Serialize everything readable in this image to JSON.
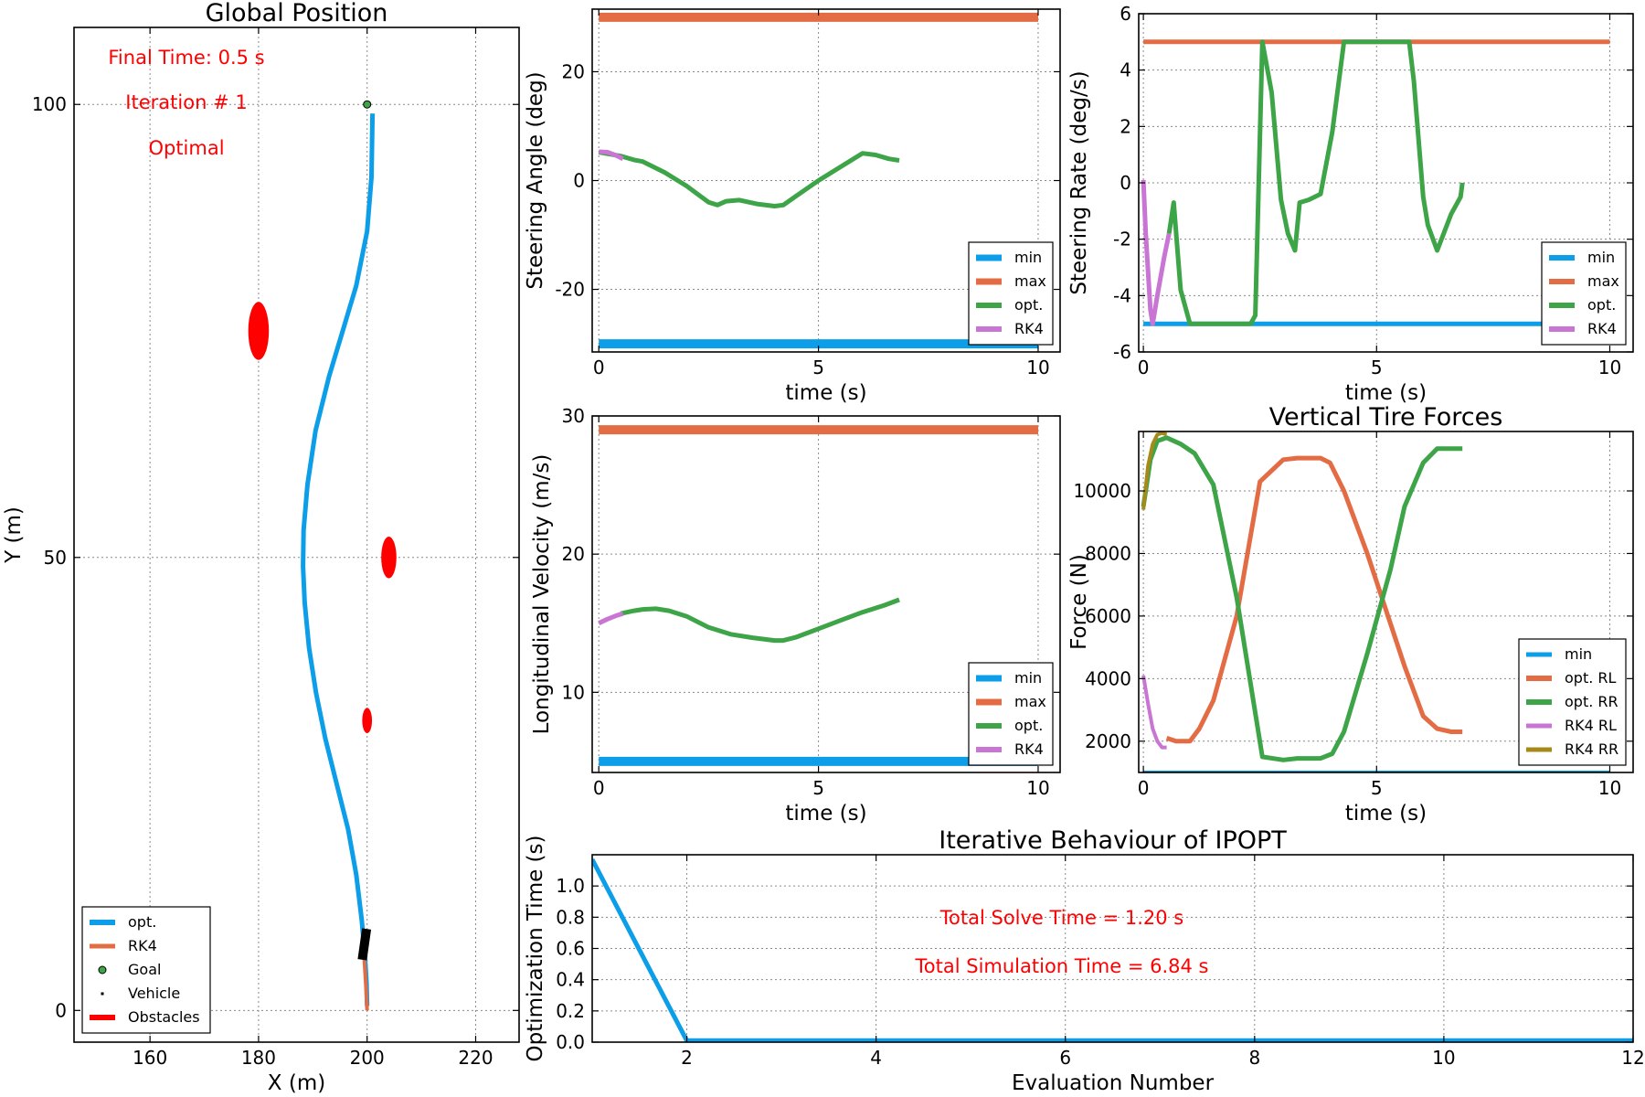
{
  "colors": {
    "min": "#0c9ee8",
    "max": "#e36c45",
    "opt": "#3da447",
    "rk4": "#c875d4",
    "rk4_rr": "#a58a1b",
    "obstacle": "#ff0000",
    "annotation": "#ff0000",
    "goal": "#3da447"
  },
  "annotations": {
    "final_time": "Final Time: 0.5 s",
    "iteration": "Iteration # 1",
    "status": "Optimal",
    "total_solve": "Total Solve Time  = 1.20 s",
    "total_sim": "Total Simulation Time = 6.84 s"
  },
  "chart_data": [
    {
      "id": "global",
      "type": "line",
      "title": "Global Position",
      "xlabel": "X (m)",
      "ylabel": "Y (m)",
      "xlim": [
        146,
        228
      ],
      "ylim": [
        -3.5,
        108.5
      ],
      "xticks": [
        160,
        180,
        200,
        220
      ],
      "yticks": [
        0,
        50,
        100
      ],
      "grid": true,
      "legend_placement": "lower-left",
      "legend": [
        "opt.",
        "RK4",
        "Goal",
        "Vehicle",
        "Obstacles"
      ],
      "series": [
        {
          "name": "opt.",
          "color_key": "min",
          "width": 5,
          "x": [
            201.0,
            200.8,
            200.0,
            198.0,
            195.5,
            193.0,
            190.5,
            189.0,
            188.3,
            188.2,
            188.5,
            189.3,
            190.6,
            192.3,
            194.4,
            196.5,
            198.0,
            199.0,
            199.6,
            199.9,
            200.0
          ],
          "y": [
            99,
            92,
            86,
            80,
            75,
            70,
            64,
            58,
            53,
            49,
            45,
            40,
            35,
            30,
            25,
            20,
            15,
            10,
            6,
            3,
            0.5
          ]
        },
        {
          "name": "RK4",
          "color_key": "max",
          "width": 4,
          "x": [
            199.3,
            199.5,
            199.8,
            200.0
          ],
          "y": [
            8.5,
            5.5,
            2.5,
            0.0
          ]
        }
      ],
      "goal": {
        "x": 200,
        "y": 100
      },
      "vehicle": {
        "x": 199.5,
        "y": 7.3
      },
      "obstacles": [
        {
          "x": 180,
          "y": 75,
          "rx": 1.9,
          "ry": 3.2
        },
        {
          "x": 204,
          "y": 50,
          "rx": 1.4,
          "ry": 2.3
        },
        {
          "x": 200,
          "y": 32,
          "rx": 0.9,
          "ry": 1.4
        }
      ]
    },
    {
      "id": "steer",
      "type": "line",
      "title": "",
      "xlabel": "time (s)",
      "ylabel": "Steering Angle (deg)",
      "xlim": [
        -0.15,
        10.5
      ],
      "ylim": [
        -31.5,
        31.5
      ],
      "xticks": [
        0,
        5,
        10
      ],
      "yticks": [
        -20,
        0,
        20
      ],
      "ytick_labels": [
        "-20",
        "0",
        "20"
      ],
      "grid": true,
      "legend_placement": "lower-right",
      "legend": [
        "min",
        "max",
        "opt.",
        "RK4"
      ],
      "series": [
        {
          "name": "min",
          "color_key": "min",
          "width": 10,
          "x": [
            0,
            10
          ],
          "y": [
            -30,
            -30
          ]
        },
        {
          "name": "max",
          "color_key": "max",
          "width": 10,
          "x": [
            0,
            10
          ],
          "y": [
            30,
            30
          ]
        },
        {
          "name": "opt.",
          "color_key": "opt",
          "width": 5,
          "x": [
            0,
            0.5,
            0.8,
            1.0,
            1.5,
            2.0,
            2.5,
            2.7,
            2.9,
            3.2,
            3.6,
            4.0,
            4.2,
            4.5,
            5.0,
            5.5,
            6.0,
            6.3,
            6.6,
            6.84
          ],
          "y": [
            5.2,
            4.5,
            3.8,
            3.5,
            1.5,
            -1.0,
            -4.0,
            -4.5,
            -3.8,
            -3.6,
            -4.3,
            -4.7,
            -4.5,
            -2.8,
            0.0,
            2.5,
            5.0,
            4.7,
            4.0,
            3.7
          ]
        },
        {
          "name": "RK4",
          "color_key": "rk4",
          "width": 5,
          "x": [
            0,
            0.2,
            0.4,
            0.55
          ],
          "y": [
            5.3,
            5.2,
            4.6,
            4.0
          ]
        }
      ]
    },
    {
      "id": "rate",
      "type": "line",
      "title": "",
      "xlabel": "time (s)",
      "ylabel": "Steering Rate (deg/s)",
      "xlim": [
        -0.1,
        10.5
      ],
      "ylim": [
        -6,
        6
      ],
      "xticks": [
        0,
        5,
        10
      ],
      "yticks": [
        -6,
        -4,
        -2,
        0,
        2,
        4,
        6
      ],
      "ytick_labels": [
        "-6",
        "-4",
        "-2",
        "0",
        "2",
        "4",
        "6"
      ],
      "grid": true,
      "legend_placement": "lower-right",
      "legend": [
        "min",
        "max",
        "opt.",
        "RK4"
      ],
      "series": [
        {
          "name": "min",
          "color_key": "min",
          "width": 5,
          "x": [
            0,
            10
          ],
          "y": [
            -5,
            -5
          ]
        },
        {
          "name": "max",
          "color_key": "max",
          "width": 5,
          "x": [
            0,
            10
          ],
          "y": [
            5,
            5
          ]
        },
        {
          "name": "opt.",
          "color_key": "opt",
          "width": 5,
          "x": [
            0.55,
            0.65,
            0.8,
            1.0,
            1.5,
            2.0,
            2.3,
            2.4,
            2.55,
            2.75,
            2.95,
            3.1,
            3.25,
            3.35,
            3.55,
            3.8,
            4.05,
            4.3,
            4.8,
            5.3,
            5.5,
            5.65,
            5.7,
            5.8,
            6.0,
            6.1,
            6.3,
            6.6,
            6.8,
            6.84
          ],
          "y": [
            -1.8,
            -0.7,
            -3.8,
            -5.0,
            -5.0,
            -5.0,
            -5.0,
            -4.7,
            5.0,
            3.2,
            -0.6,
            -1.8,
            -2.4,
            -0.7,
            -0.6,
            -0.4,
            1.8,
            5.0,
            5.0,
            5.0,
            5.0,
            5.0,
            5.0,
            3.6,
            -0.5,
            -1.5,
            -2.4,
            -1.1,
            -0.5,
            0.0
          ]
        },
        {
          "name": "RK4",
          "color_key": "rk4",
          "width": 5,
          "x": [
            0,
            0.05,
            0.15,
            0.2,
            0.3,
            0.45,
            0.55
          ],
          "y": [
            0.1,
            -1.8,
            -4.5,
            -5.0,
            -4.0,
            -2.6,
            -1.8
          ]
        }
      ]
    },
    {
      "id": "vel",
      "type": "line",
      "title": "",
      "xlabel": "time (s)",
      "ylabel": "Longitudinal Velocity (m/s)",
      "xlim": [
        -0.15,
        10.5
      ],
      "ylim": [
        4.2,
        30
      ],
      "xticks": [
        0,
        5,
        10
      ],
      "yticks": [
        10,
        20,
        30
      ],
      "ytick_labels": [
        "10",
        "20",
        "30"
      ],
      "grid": true,
      "legend_placement": "lower-right",
      "legend": [
        "min",
        "max",
        "opt.",
        "RK4"
      ],
      "series": [
        {
          "name": "min",
          "color_key": "min",
          "width": 10,
          "x": [
            0,
            10
          ],
          "y": [
            5,
            5
          ]
        },
        {
          "name": "max",
          "color_key": "max",
          "width": 10,
          "x": [
            0,
            10
          ],
          "y": [
            29,
            29
          ]
        },
        {
          "name": "opt.",
          "color_key": "opt",
          "width": 5,
          "x": [
            0.5,
            0.8,
            1.0,
            1.3,
            1.6,
            2.0,
            2.5,
            3.0,
            3.5,
            4.0,
            4.2,
            4.5,
            5.0,
            5.5,
            6.0,
            6.5,
            6.84
          ],
          "y": [
            15.7,
            15.9,
            16.0,
            16.05,
            15.9,
            15.5,
            14.7,
            14.2,
            13.95,
            13.75,
            13.75,
            14.0,
            14.6,
            15.2,
            15.8,
            16.3,
            16.7
          ]
        },
        {
          "name": "RK4",
          "color_key": "rk4",
          "width": 5,
          "x": [
            0,
            0.2,
            0.4,
            0.55
          ],
          "y": [
            15.0,
            15.3,
            15.55,
            15.7
          ]
        }
      ]
    },
    {
      "id": "tire",
      "type": "line",
      "title": "Vertical Tire Forces",
      "xlabel": "time (s)",
      "ylabel": "Force (N)",
      "xlim": [
        -0.1,
        10.5
      ],
      "ylim": [
        1000,
        11900
      ],
      "xticks": [
        0,
        5,
        10
      ],
      "yticks": [
        2000,
        4000,
        6000,
        8000,
        10000
      ],
      "ytick_labels": [
        "2000",
        "4000",
        "6000",
        "8000",
        "10000"
      ],
      "grid": true,
      "legend_placement": "lower-right",
      "legend": [
        "min",
        "opt. RL",
        "opt. RR",
        "RK4 RL",
        "RK4 RR"
      ],
      "series": [
        {
          "name": "min",
          "color_key": "min",
          "width": 4,
          "x": [
            0,
            10
          ],
          "y": [
            1000,
            1000
          ]
        },
        {
          "name": "opt. RL",
          "color_key": "max",
          "width": 5,
          "x": [
            0.5,
            0.7,
            1.0,
            1.2,
            1.5,
            2.0,
            2.5,
            3.0,
            3.3,
            3.8,
            4.0,
            4.3,
            4.8,
            5.2,
            5.6,
            6.0,
            6.3,
            6.6,
            6.84
          ],
          "y": [
            2100,
            2000,
            2000,
            2400,
            3300,
            6000,
            10300,
            11000,
            11050,
            11050,
            10900,
            10000,
            8000,
            6200,
            4400,
            2800,
            2400,
            2300,
            2300
          ]
        },
        {
          "name": "opt. RR",
          "color_key": "opt",
          "width": 5,
          "x": [
            0,
            0.15,
            0.3,
            0.5,
            0.8,
            1.1,
            1.5,
            2.0,
            2.55,
            3.0,
            3.3,
            3.8,
            4.05,
            4.3,
            4.8,
            5.3,
            5.6,
            6.0,
            6.3,
            6.84
          ],
          "y": [
            9500,
            11000,
            11600,
            11700,
            11500,
            11200,
            10200,
            6600,
            1500,
            1400,
            1450,
            1450,
            1600,
            2300,
            4800,
            7500,
            9500,
            10900,
            11350,
            11350
          ]
        },
        {
          "name": "RK4 RL",
          "color_key": "rk4",
          "width": 4,
          "x": [
            0,
            0.1,
            0.2,
            0.3,
            0.4,
            0.5
          ],
          "y": [
            4100,
            3200,
            2400,
            2000,
            1800,
            1800
          ]
        },
        {
          "name": "RK4 RR",
          "color_key": "rk4_rr",
          "width": 4,
          "x": [
            0,
            0.1,
            0.2,
            0.3,
            0.4,
            0.5
          ],
          "y": [
            9400,
            10800,
            11500,
            11800,
            11850,
            11800
          ]
        }
      ]
    },
    {
      "id": "ipopt",
      "type": "line",
      "title": "Iterative Behaviour of IPOPT",
      "xlabel": "Evaluation Number",
      "ylabel": "Optimization Time (s)",
      "xlim": [
        1,
        12
      ],
      "ylim": [
        0,
        1.2
      ],
      "xticks": [
        2,
        4,
        6,
        8,
        10,
        12
      ],
      "yticks": [
        0.0,
        0.2,
        0.4,
        0.6,
        0.8,
        1.0
      ],
      "ytick_labels": [
        "0.0",
        "0.2",
        "0.4",
        "0.6",
        "0.8",
        "1.0"
      ],
      "grid": true,
      "series": [
        {
          "name": "",
          "color_key": "min",
          "width": 5,
          "x": [
            1,
            2,
            3,
            4,
            5,
            6,
            7,
            8,
            9,
            10,
            11,
            12
          ],
          "y": [
            1.17,
            0.01,
            0.01,
            0.01,
            0.01,
            0.01,
            0.01,
            0.01,
            0.01,
            0.01,
            0.01,
            0.01
          ]
        }
      ]
    }
  ]
}
